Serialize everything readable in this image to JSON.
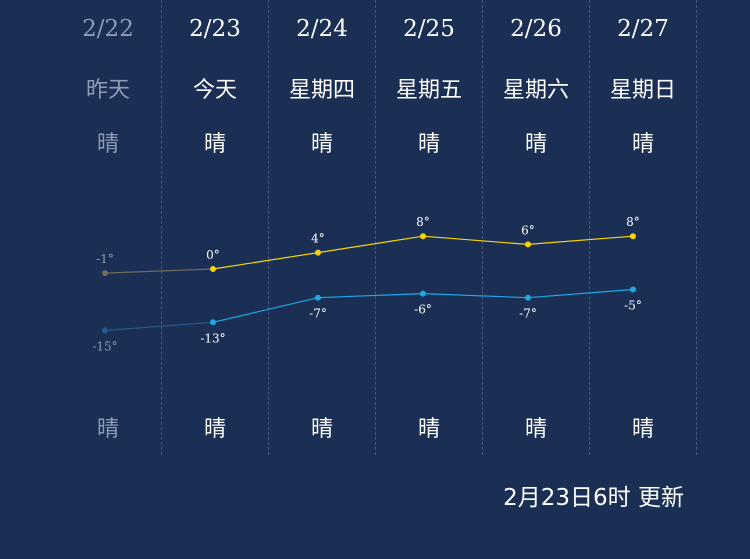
{
  "days": [
    {
      "date": "2/22",
      "day": "昨天",
      "weather_day": "晴",
      "weather_night": "晴",
      "past": true
    },
    {
      "date": "2/23",
      "day": "今天",
      "weather_day": "晴",
      "weather_night": "晴",
      "past": false
    },
    {
      "date": "2/24",
      "day": "星期四",
      "weather_day": "晴",
      "weather_night": "晴",
      "past": false
    },
    {
      "date": "2/25",
      "day": "星期五",
      "weather_day": "晴",
      "weather_night": "晴",
      "past": false
    },
    {
      "date": "2/26",
      "day": "星期六",
      "weather_day": "晴",
      "weather_night": "晴",
      "past": false
    },
    {
      "date": "2/27",
      "day": "星期日",
      "weather_day": "晴",
      "weather_night": "晴",
      "past": false
    }
  ],
  "chart_data": {
    "type": "line",
    "x": [
      "2/22",
      "2/23",
      "2/24",
      "2/25",
      "2/26",
      "2/27"
    ],
    "series": [
      {
        "values": [
          -1,
          0,
          4,
          8,
          6,
          8
        ],
        "labels": [
          "-1°",
          "0°",
          "4°",
          "8°",
          "6°",
          "8°"
        ],
        "color": "#f5d50a",
        "past_color": "#6c6c5a"
      },
      {
        "values": [
          -15,
          -13,
          -7,
          -6,
          -7,
          -5
        ],
        "labels": [
          "-15°",
          "-13°",
          "-7°",
          "-6°",
          "-7°",
          "-5°"
        ],
        "color": "#1ea8e8",
        "past_color": "#245b8c"
      }
    ]
  },
  "colors": {
    "background": "#1b2f55",
    "text": "#ffffff",
    "past_text": "#8e9bb5"
  },
  "footer": {
    "update_text": "2月23日6时 更新"
  }
}
